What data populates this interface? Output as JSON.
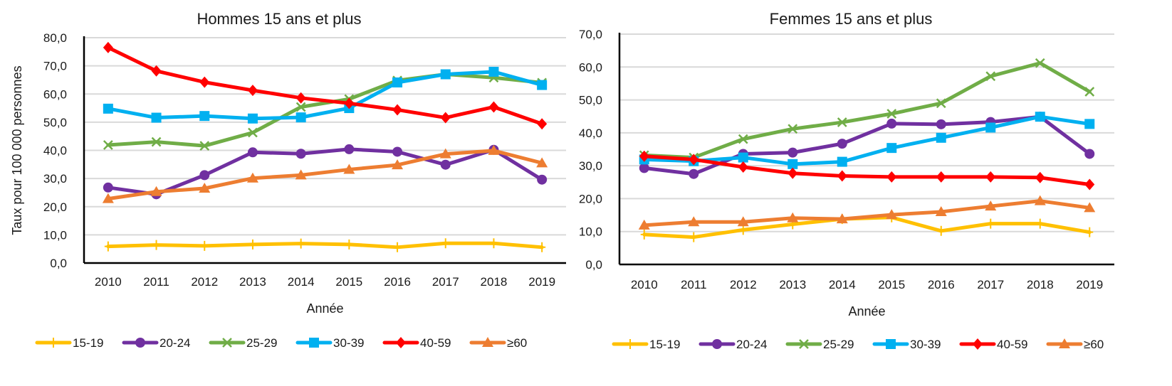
{
  "chart_data": [
    {
      "type": "line",
      "title": "Hommes 15 ans et plus",
      "xlabel": "Année",
      "ylabel": "Taux pour 100 000 personnes",
      "ylim": [
        0,
        80
      ],
      "ytick_step": 10,
      "ytick_labels": [
        "0,0",
        "10,0",
        "20,0",
        "30,0",
        "40,0",
        "50,0",
        "60,0",
        "70,0",
        "80,0"
      ],
      "grid": true,
      "legend_position": "bottom",
      "categories": [
        "2010",
        "2011",
        "2012",
        "2013",
        "2014",
        "2015",
        "2016",
        "2017",
        "2018",
        "2019"
      ],
      "series": [
        {
          "name": "15-19",
          "color": "#FFC000",
          "marker": "plus",
          "values": [
            5.9,
            6.4,
            6.1,
            6.6,
            6.9,
            6.6,
            5.6,
            7.0,
            7.0,
            5.6
          ]
        },
        {
          "name": "20-24",
          "color": "#7030A0",
          "marker": "circle",
          "values": [
            26.8,
            24.4,
            31.2,
            39.3,
            38.8,
            40.4,
            39.5,
            34.9,
            40.2,
            29.6
          ]
        },
        {
          "name": "25-29",
          "color": "#70AD47",
          "marker": "x",
          "values": [
            41.9,
            43.0,
            41.6,
            46.3,
            55.4,
            58.2,
            64.8,
            67.0,
            65.8,
            64.0
          ]
        },
        {
          "name": "30-39",
          "color": "#00B0F0",
          "marker": "square",
          "values": [
            54.8,
            51.6,
            52.2,
            51.3,
            51.7,
            55.0,
            64.1,
            67.0,
            67.9,
            63.2
          ]
        },
        {
          "name": "40-59",
          "color": "#FF0000",
          "marker": "diamond",
          "values": [
            76.5,
            68.2,
            64.2,
            61.3,
            58.6,
            56.7,
            54.4,
            51.6,
            55.4,
            49.4
          ]
        },
        {
          "name": "≥60",
          "color": "#ED7D31",
          "marker": "triangle",
          "values": [
            22.8,
            25.3,
            26.5,
            30.1,
            31.2,
            33.2,
            34.8,
            38.7,
            39.9,
            35.5
          ]
        }
      ]
    },
    {
      "type": "line",
      "title": "Femmes 15 ans et plus",
      "xlabel": "Année",
      "ylabel": "",
      "ylim": [
        0,
        70
      ],
      "ytick_step": 10,
      "ytick_labels": [
        "0,0",
        "10,0",
        "20,0",
        "30,0",
        "40,0",
        "50,0",
        "60,0",
        "70,0"
      ],
      "grid": true,
      "legend_position": "bottom",
      "categories": [
        "2010",
        "2011",
        "2012",
        "2013",
        "2014",
        "2015",
        "2016",
        "2017",
        "2018",
        "2019"
      ],
      "series": [
        {
          "name": "15-19",
          "color": "#FFC000",
          "marker": "plus",
          "values": [
            9.1,
            8.3,
            10.5,
            12.2,
            13.8,
            14.3,
            10.2,
            12.4,
            12.4,
            9.8
          ]
        },
        {
          "name": "20-24",
          "color": "#7030A0",
          "marker": "circle",
          "values": [
            29.3,
            27.5,
            33.6,
            34.0,
            36.7,
            42.8,
            42.6,
            43.3,
            44.9,
            33.6
          ]
        },
        {
          "name": "25-29",
          "color": "#70AD47",
          "marker": "x",
          "values": [
            33.2,
            32.5,
            38.1,
            41.2,
            43.2,
            45.8,
            49.0,
            57.2,
            61.2,
            52.5
          ]
        },
        {
          "name": "30-39",
          "color": "#00B0F0",
          "marker": "square",
          "values": [
            31.9,
            31.4,
            32.5,
            30.5,
            31.2,
            35.4,
            38.5,
            41.6,
            44.9,
            42.7
          ]
        },
        {
          "name": "40-59",
          "color": "#FF0000",
          "marker": "diamond",
          "values": [
            32.9,
            31.9,
            29.6,
            27.7,
            26.9,
            26.6,
            26.6,
            26.6,
            26.4,
            24.3
          ]
        },
        {
          "name": "≥60",
          "color": "#ED7D31",
          "marker": "triangle",
          "values": [
            11.9,
            12.9,
            12.9,
            14.1,
            13.8,
            15.1,
            16.0,
            17.7,
            19.3,
            17.2
          ]
        }
      ]
    }
  ]
}
